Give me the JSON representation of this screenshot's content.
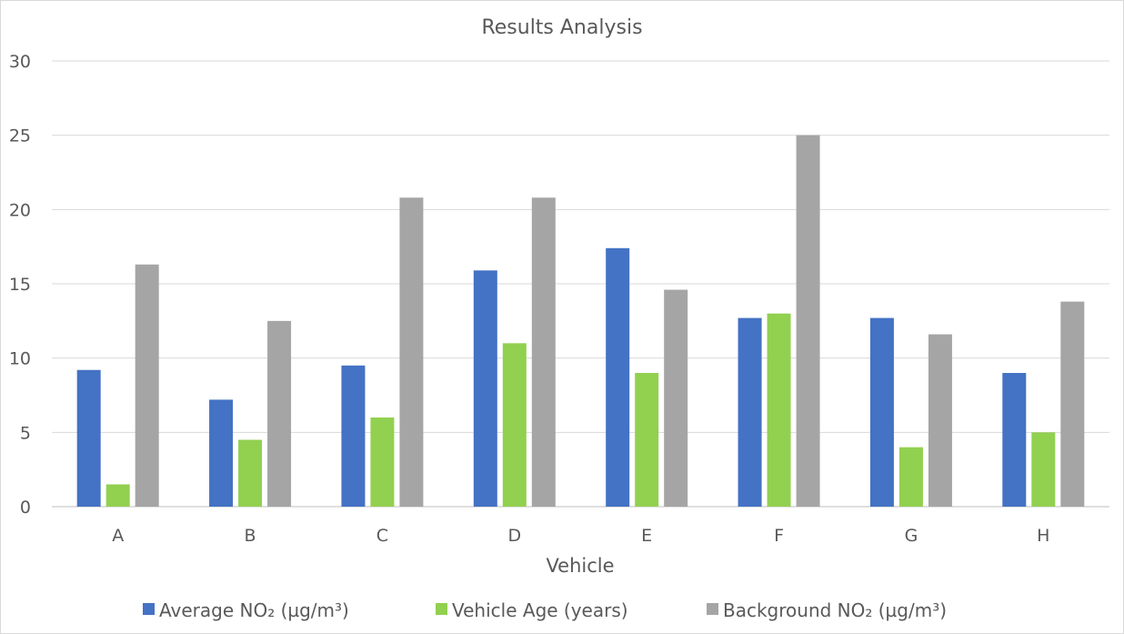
{
  "chart_data": {
    "type": "bar",
    "title": "Results Analysis",
    "xlabel": "Vehicle",
    "ylabel": "",
    "ylim": [
      0,
      30
    ],
    "yticks": [
      0,
      5,
      10,
      15,
      20,
      25,
      30
    ],
    "grid": true,
    "legend_position": "bottom",
    "categories": [
      "A",
      "B",
      "C",
      "D",
      "E",
      "F",
      "G",
      "H"
    ],
    "series": [
      {
        "name": "Average NO₂ (µg/m³)",
        "color": "#4472c4",
        "values": [
          9.2,
          7.2,
          9.5,
          15.9,
          17.4,
          12.7,
          12.7,
          9.0
        ]
      },
      {
        "name": "Vehicle Age (years)",
        "color": "#92d050",
        "values": [
          1.5,
          4.5,
          6,
          11,
          9,
          13,
          4,
          5
        ]
      },
      {
        "name": "Background NO₂ (µg/m³)",
        "color": "#a5a5a5",
        "values": [
          16.3,
          12.5,
          20.8,
          20.8,
          14.6,
          25.0,
          11.6,
          13.8
        ]
      }
    ]
  }
}
